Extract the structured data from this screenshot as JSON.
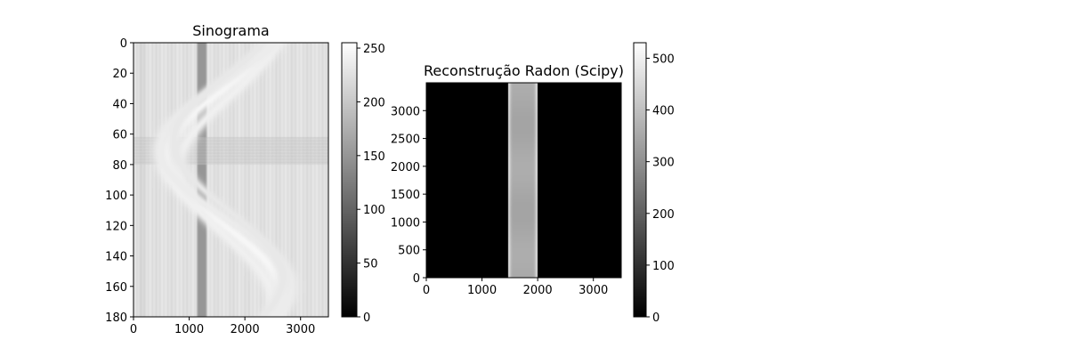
{
  "chart_data": [
    {
      "type": "heatmap",
      "title": "Sinograma",
      "colormap": "gray",
      "xlim": [
        0,
        3500
      ],
      "ylim": [
        180,
        0
      ],
      "x_ticks": [
        0,
        1000,
        2000,
        3000
      ],
      "y_ticks": [
        0,
        20,
        40,
        60,
        80,
        100,
        120,
        140,
        160,
        180
      ],
      "x_tick_labels": [
        "0",
        "1000",
        "2000",
        "3000"
      ],
      "y_tick_labels": [
        "0",
        "20",
        "40",
        "60",
        "80",
        "100",
        "120",
        "140",
        "160",
        "180"
      ],
      "background_level": 225,
      "dark_column_band": {
        "x_range": [
          1120,
          1330
        ],
        "level": 150
      },
      "dark_row_band": {
        "y_range": [
          62,
          80
        ],
        "level": 195
      },
      "sinusoid_traces": [
        {
          "center_x": 1625,
          "amplitude": 1040,
          "phase_deg": 120,
          "width": 180,
          "level": 248
        },
        {
          "center_x": 1660,
          "amplitude": 860,
          "phase_deg": 105,
          "width": 150,
          "level": 240
        },
        {
          "center_x": 1650,
          "amplitude": 1180,
          "phase_deg": 130,
          "width": 140,
          "level": 236
        },
        {
          "center_x": 1700,
          "amplitude": 980,
          "phase_deg": 140,
          "width": 120,
          "level": 232
        }
      ],
      "colorbar": {
        "vmin": 0,
        "vmax": 255,
        "ticks": [
          0,
          50,
          100,
          150,
          200,
          250
        ],
        "tick_labels": [
          "0",
          "50",
          "100",
          "150",
          "200",
          "250"
        ]
      }
    },
    {
      "type": "heatmap",
      "title": "Reconstrução Radon (Scipy)",
      "colormap": "gray",
      "xlim": [
        0,
        3500
      ],
      "ylim": [
        0,
        3500
      ],
      "x_ticks": [
        0,
        1000,
        2000,
        3000
      ],
      "y_ticks": [
        0,
        500,
        1000,
        1500,
        2000,
        2500,
        3000
      ],
      "x_tick_labels": [
        "0",
        "1000",
        "2000",
        "3000"
      ],
      "y_tick_labels": [
        "0",
        "500",
        "1000",
        "1500",
        "2000",
        "2500",
        "3000"
      ],
      "background_level": 0,
      "bright_column": {
        "x_range": [
          1470,
          2000
        ],
        "edge_level": 470,
        "center_level": 350
      },
      "colorbar": {
        "vmin": 0,
        "vmax": 530,
        "ticks": [
          0,
          100,
          200,
          300,
          400,
          500
        ],
        "tick_labels": [
          "0",
          "100",
          "200",
          "300",
          "400",
          "500"
        ]
      }
    }
  ]
}
